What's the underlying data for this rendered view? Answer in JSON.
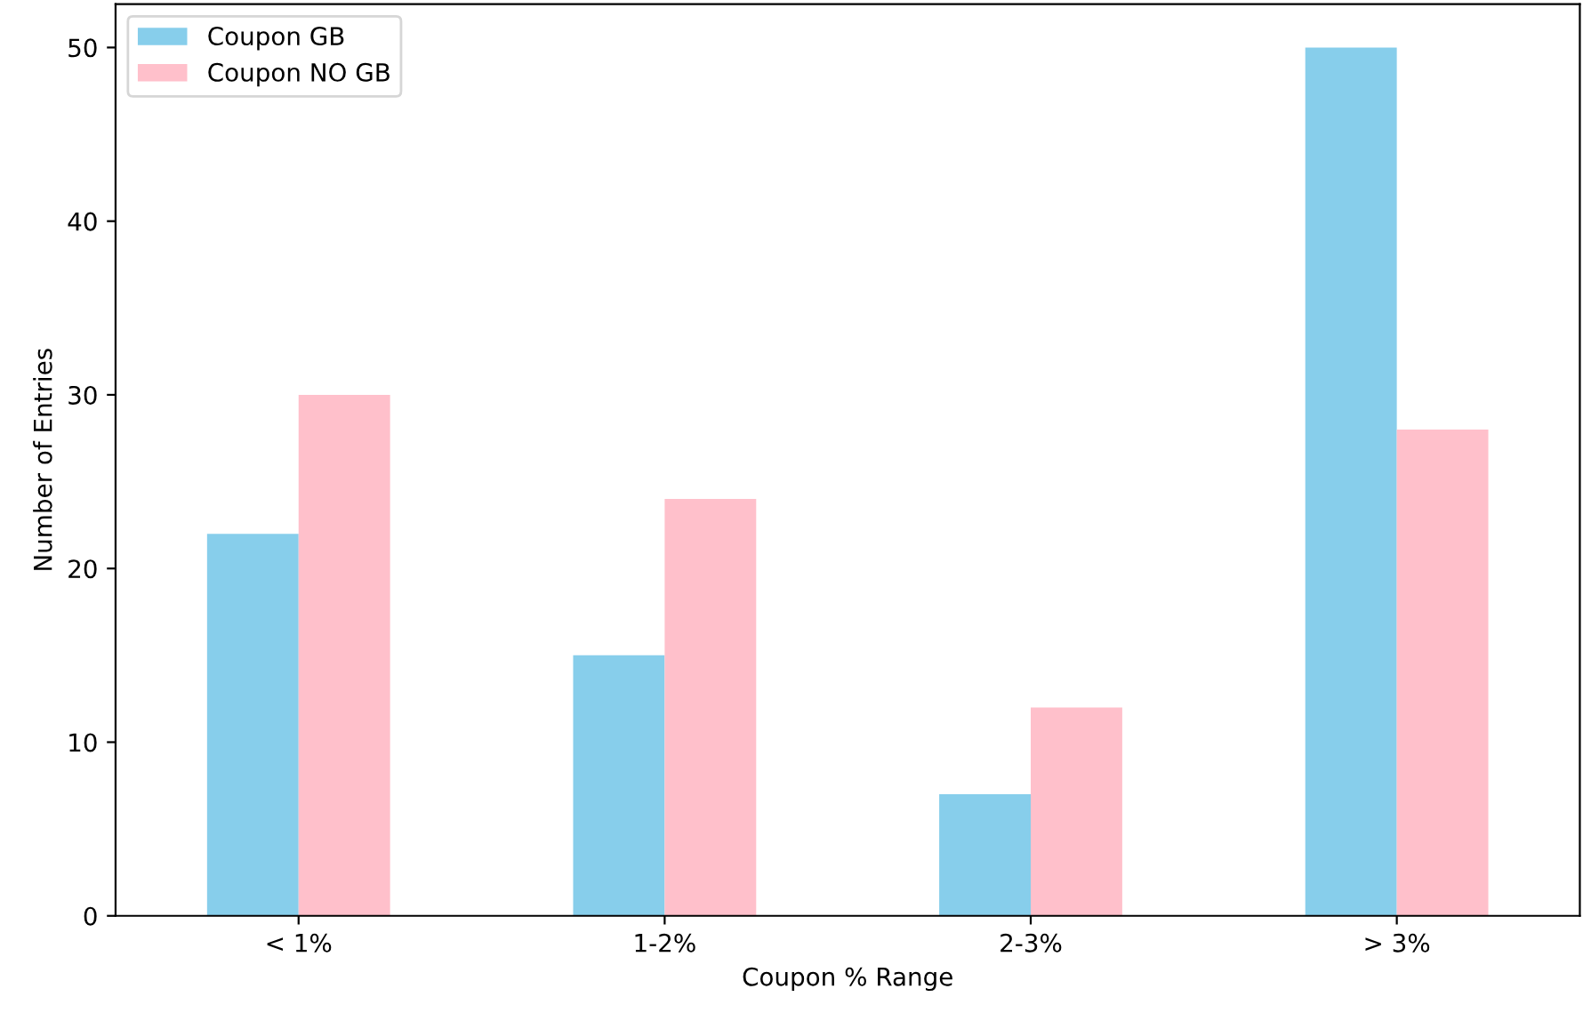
{
  "chart_data": {
    "type": "bar",
    "xlabel": "Coupon % Range",
    "ylabel": "Number of Entries",
    "categories": [
      "< 1%",
      "1-2%",
      "2-3%",
      "> 3%"
    ],
    "series": [
      {
        "name": "Coupon GB",
        "color": "#87ceeb",
        "values": [
          22,
          15,
          7,
          50
        ]
      },
      {
        "name": "Coupon NO GB",
        "color": "#ffc0cb",
        "values": [
          30,
          24,
          12,
          28
        ]
      }
    ],
    "ylim": [
      0,
      52.5
    ],
    "yticks": [
      0,
      10,
      20,
      30,
      40,
      50
    ],
    "grid": false,
    "legend": "top left"
  }
}
